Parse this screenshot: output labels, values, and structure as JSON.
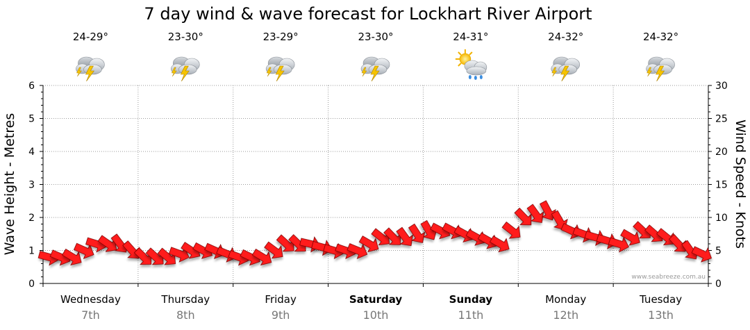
{
  "chart_data": {
    "type": "line",
    "title": "7 day wind & wave forecast for Lockhart River Airport",
    "ylabel_left": "Wave Height - Metres",
    "ylabel_right": "Wind Speed - Knots",
    "y_left_range": [
      0,
      6
    ],
    "y_right_range": [
      0,
      30
    ],
    "y_left_ticks": [
      "0",
      "1",
      "2",
      "3",
      "4",
      "5",
      "6"
    ],
    "y_right_ticks": [
      "0",
      "5",
      "10",
      "15",
      "20",
      "25",
      "30"
    ],
    "grid": true,
    "credit": "www.seabreeze.com.au",
    "days": [
      {
        "name": "Wednesday",
        "date": "7th",
        "temp": "24-29°",
        "icon": "thunderstorm-icon",
        "bold": false
      },
      {
        "name": "Thursday",
        "date": "8th",
        "temp": "23-30°",
        "icon": "thunderstorm-icon",
        "bold": false
      },
      {
        "name": "Friday",
        "date": "9th",
        "temp": "23-29°",
        "icon": "thunderstorm-icon",
        "bold": false
      },
      {
        "name": "Saturday",
        "date": "10th",
        "temp": "23-30°",
        "icon": "thunderstorm-icon",
        "bold": true
      },
      {
        "name": "Sunday",
        "date": "11th",
        "temp": "24-31°",
        "icon": "sun-shower-icon",
        "bold": true
      },
      {
        "name": "Monday",
        "date": "12th",
        "temp": "24-32°",
        "icon": "thunderstorm-icon",
        "bold": false
      },
      {
        "name": "Tuesday",
        "date": "13th",
        "temp": "24-32°",
        "icon": "thunderstorm-icon",
        "bold": false
      }
    ],
    "series": [
      {
        "name": "Wind Speed (knots)",
        "x_hours": [
          0,
          6,
          12,
          18,
          24,
          30,
          36,
          42,
          48,
          54,
          60,
          66,
          72,
          78,
          84,
          90,
          96,
          102,
          108,
          114,
          120,
          126,
          132,
          138,
          144,
          150,
          156,
          162,
          168
        ],
        "values": [
          4,
          4,
          6,
          6,
          4,
          4,
          5,
          5,
          4,
          4,
          6,
          6,
          5,
          5,
          7,
          7,
          8,
          8,
          7,
          6,
          10,
          11,
          8,
          7,
          6,
          8,
          7,
          5,
          4
        ],
        "direction_deg": [
          120,
          130,
          110,
          140,
          125,
          115,
          135,
          120,
          110,
          115,
          120,
          118,
          115,
          115,
          125,
          135,
          135,
          130,
          125,
          120,
          130,
          140,
          130,
          115,
          110,
          130,
          120,
          130,
          130
        ]
      }
    ],
    "colors": {
      "arrow": "#ff1a1a",
      "arrow_stroke": "#7a0000",
      "grid": "#9a9a9a",
      "axis": "#000000"
    }
  }
}
